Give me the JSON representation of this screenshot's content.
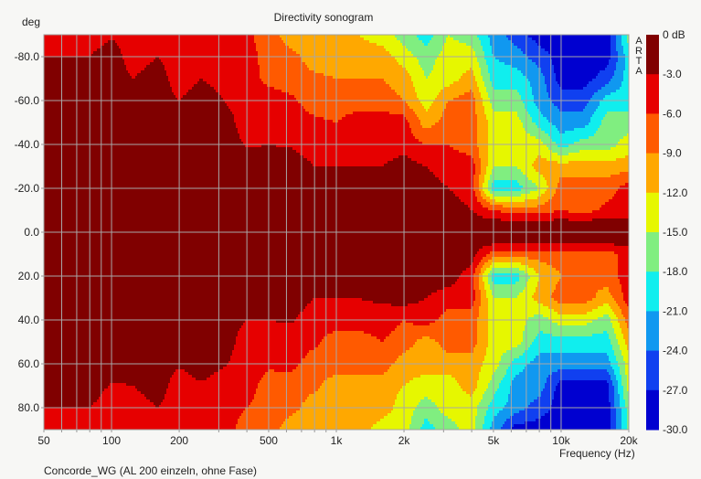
{
  "chart_data": {
    "type": "heatmap",
    "title": "Directivity sonogram",
    "xlabel": "Frequency (Hz)",
    "ylabel": "deg",
    "caption": "Concorde_WG (AL 200 einzeln, ohne Fase)",
    "watermark": "ARTA",
    "x_scale": "log",
    "xlim": [
      50,
      20000
    ],
    "ylim": [
      -90,
      90
    ],
    "grid": true,
    "x_tick_values": [
      50,
      100,
      200,
      500,
      1000,
      2000,
      5000,
      10000,
      20000
    ],
    "x_tick_labels": [
      "50",
      "100",
      "200",
      "500",
      "1k",
      "2k",
      "5k",
      "10k",
      "20k"
    ],
    "y_tick_values": [
      -80,
      -60,
      -40,
      -20,
      0,
      20,
      40,
      60,
      80
    ],
    "y_tick_labels": [
      "-80.0",
      "-60.0",
      "-40.0",
      "-20.0",
      "0.0",
      "20.0",
      "40.0",
      "60.0",
      "80.0"
    ],
    "colorbar": {
      "labels": [
        "0 dB",
        "-3.0",
        "-6.0",
        "-9.0",
        "-12.0",
        "-15.0",
        "-18.0",
        "-21.0",
        "-24.0",
        "-27.0",
        "-30.0"
      ],
      "levels_db": [
        0,
        -3,
        -6,
        -9,
        -12,
        -15,
        -18,
        -21,
        -24,
        -27,
        -30
      ],
      "colors": [
        "#800000",
        "#e60000",
        "#ff5a00",
        "#ffa800",
        "#e6f700",
        "#80ee80",
        "#10eeee",
        "#1098f0",
        "#1040f0",
        "#0000d0"
      ]
    },
    "frequencies_hz": [
      50,
      63,
      80,
      100,
      125,
      160,
      200,
      250,
      315,
      400,
      500,
      630,
      800,
      1000,
      1250,
      1600,
      2000,
      2500,
      3150,
      4000,
      5000,
      6300,
      8000,
      10000,
      12500,
      16000,
      20000
    ],
    "angles_deg": [
      -90,
      -80,
      -70,
      -60,
      -50,
      -40,
      -30,
      -20,
      -10,
      -5,
      0,
      5,
      10,
      20,
      30,
      40,
      50,
      60,
      70,
      80,
      90
    ],
    "level_db": [
      [
        -4.5,
        -4.5,
        -4.5,
        -3.3,
        -4.5,
        -4.5,
        -4.5,
        -4.5,
        -4.5,
        -5.4,
        -7.5,
        -10.5,
        -10.5,
        -10.5,
        -12,
        -13.5,
        -16.5,
        -19.5,
        -15,
        -16.5,
        -22.5,
        -25.5,
        -28.5,
        -28.5,
        -28.5,
        -28.5,
        -16.5
      ],
      [
        -3,
        -3,
        -3,
        -1.5,
        -4.5,
        -3,
        -4.5,
        -4.5,
        -4.5,
        -4.5,
        -7.5,
        -8.1,
        -10.5,
        -10.5,
        -10.5,
        -10.5,
        -13.5,
        -16.5,
        -13.5,
        -13.5,
        -21,
        -22.5,
        -25.5,
        -28.5,
        -28.5,
        -28.5,
        -19.5
      ],
      [
        -1.5,
        -1.5,
        -1.5,
        -1.5,
        -3,
        -1.5,
        -4.5,
        -3,
        -3.9,
        -4.5,
        -6.9,
        -7.5,
        -8.4,
        -9,
        -9,
        -9,
        -10.5,
        -15,
        -13.5,
        -10.5,
        -19.5,
        -19.5,
        -22.5,
        -28.5,
        -28.5,
        -25.5,
        -19.5
      ],
      [
        -1.5,
        -1.5,
        -1.5,
        -1.5,
        -1.5,
        -1.5,
        -3,
        -1.5,
        -3,
        -4.5,
        -4.5,
        -5.4,
        -7.5,
        -7.5,
        -7.5,
        -7.5,
        -9,
        -13.5,
        -9,
        -7.5,
        -16.5,
        -16.5,
        -22.5,
        -25.5,
        -25.5,
        -19.5,
        -19.5
      ],
      [
        -1.5,
        -1.5,
        -1.5,
        -1.5,
        -1.5,
        -1.5,
        -1.5,
        -1.5,
        -1.5,
        -4.5,
        -4.5,
        -4.5,
        -5.4,
        -6,
        -4.5,
        -4.5,
        -4.5,
        -10.5,
        -7.5,
        -7.5,
        -13.5,
        -13.5,
        -19.5,
        -22.5,
        -22.5,
        -16.5,
        -16.5
      ],
      [
        -1.5,
        -1.5,
        -1.5,
        -1.5,
        -1.5,
        -1.5,
        -1.5,
        -1.5,
        -1.5,
        -3.3,
        -3,
        -3.3,
        -4.5,
        -4.5,
        -4.5,
        -4.5,
        -4.5,
        -6,
        -6,
        -7.5,
        -13.5,
        -13.5,
        -13.5,
        -19.5,
        -16.5,
        -16.5,
        -13.5
      ],
      [
        -1.5,
        -1.5,
        -1.5,
        -1.5,
        -1.5,
        -1.5,
        -1.5,
        -1.5,
        -1.5,
        -1.5,
        -1.5,
        -1.5,
        -3,
        -3,
        -3,
        -3,
        -1.5,
        -3,
        -4.5,
        -4.5,
        -15,
        -15,
        -10.5,
        -10.5,
        -10.5,
        -10.5,
        -10.5
      ],
      [
        -1.5,
        -1.5,
        -1.5,
        -1.5,
        -1.5,
        -1.5,
        -1.5,
        -1.5,
        -1.5,
        -1.5,
        -1.5,
        -1.5,
        -1.5,
        -1.5,
        -1.5,
        -1.5,
        -1.5,
        -1.5,
        -3,
        -4.5,
        -19.5,
        -19.5,
        -15,
        -7.5,
        -7.5,
        -7.5,
        -4.5
      ],
      [
        -1.5,
        -1.5,
        -1.5,
        -1.5,
        -1.5,
        -1.5,
        -1.5,
        -1.5,
        -1.5,
        -1.5,
        -1.5,
        -1.5,
        -1.5,
        -1.5,
        -1.5,
        -1.5,
        -1.5,
        -1.5,
        -1.5,
        -3,
        -6,
        -7.5,
        -7.5,
        -6,
        -7.5,
        -5.1,
        -4.5
      ],
      [
        -1.5,
        -1.5,
        -1.5,
        -1.5,
        -1.5,
        -1.5,
        -1.5,
        -1.5,
        -1.5,
        -1.5,
        -1.5,
        -1.5,
        -1.5,
        -1.5,
        -1.5,
        -1.5,
        -1.5,
        -1.5,
        -1.5,
        -1.5,
        -2.5,
        -2.5,
        -2.5,
        -2.5,
        -2.5,
        -2.5,
        -2.5
      ],
      [
        -1.5,
        -1.5,
        -1.5,
        -1.5,
        -1.5,
        -1.5,
        -1.5,
        -1.5,
        -1.5,
        -1.5,
        -1.5,
        -1.5,
        -1.5,
        -1.5,
        -1.5,
        -1.5,
        -1.5,
        -1.5,
        -1.5,
        -1.5,
        -1.5,
        -1.5,
        -1.5,
        -1.5,
        -1.5,
        -1.5,
        -1.5
      ],
      [
        -1.5,
        -1.5,
        -1.5,
        -1.5,
        -1.5,
        -1.5,
        -1.5,
        -1.5,
        -1.5,
        -1.5,
        -1.5,
        -1.5,
        -1.5,
        -1.5,
        -1.5,
        -1.5,
        -1.5,
        -1.5,
        -1.5,
        -1.5,
        -2.5,
        -2.5,
        -2.5,
        -2.5,
        -2.5,
        -2.5,
        -2.5
      ],
      [
        -1.5,
        -1.5,
        -1.5,
        -1.5,
        -1.5,
        -1.5,
        -1.5,
        -1.5,
        -1.5,
        -1.5,
        -1.5,
        -1.5,
        -1.5,
        -1.5,
        -1.5,
        -1.5,
        -1.5,
        -1.5,
        -1.5,
        -1.5,
        -7.5,
        -7.5,
        -7.5,
        -7.5,
        -7.5,
        -7.5,
        -4.5
      ],
      [
        -1.5,
        -1.5,
        -1.5,
        -1.5,
        -1.5,
        -1.5,
        -1.5,
        -1.5,
        -1.5,
        -1.5,
        -1.5,
        -1.5,
        -1.5,
        -1.5,
        -1.5,
        -1.5,
        -1.5,
        -1.5,
        -1.5,
        -4.5,
        -19.5,
        -19.5,
        -12,
        -9,
        -9,
        -7.5,
        -4.5
      ],
      [
        -1.5,
        -1.5,
        -1.5,
        -1.5,
        -1.5,
        -1.5,
        -1.5,
        -1.5,
        -1.5,
        -1.5,
        -1.5,
        -1.5,
        -3,
        -3,
        -3,
        -2.4,
        -1.5,
        -3,
        -4.5,
        -4.5,
        -15,
        -15,
        -10.5,
        -7.5,
        -7.5,
        -10.5,
        -4.5
      ],
      [
        -1.5,
        -1.5,
        -1.5,
        -1.5,
        -1.5,
        -1.5,
        -1.5,
        -1.5,
        -1.5,
        -3,
        -3,
        -2.7,
        -4.5,
        -4.5,
        -4.5,
        -4.5,
        -6,
        -4.5,
        -7.5,
        -7.5,
        -13.5,
        -13.5,
        -16.5,
        -13.5,
        -13.5,
        -16.5,
        -7.5
      ],
      [
        -1.5,
        -1.5,
        -1.5,
        -1.5,
        -1.5,
        -1.5,
        -1.5,
        -1.5,
        -1.5,
        -4.5,
        -4.5,
        -4.5,
        -5.4,
        -7.5,
        -7.5,
        -6,
        -7.5,
        -10.5,
        -7.5,
        -7.5,
        -13.5,
        -13.5,
        -19.5,
        -19.5,
        -19.5,
        -19.5,
        -10.5
      ],
      [
        -1.5,
        -1.5,
        -1.5,
        -1.5,
        -1.5,
        -1.5,
        -2.7,
        -1.5,
        -2.7,
        -4.5,
        -5.4,
        -5.1,
        -7.5,
        -7.5,
        -7.5,
        -7.5,
        -10.5,
        -10.5,
        -10.5,
        -10.5,
        -13.5,
        -19.5,
        -22.5,
        -22.5,
        -22.5,
        -22.5,
        -13.5
      ],
      [
        -1.5,
        -1.5,
        -1.5,
        -3.3,
        -3,
        -1.5,
        -4.5,
        -3.3,
        -4.5,
        -4.5,
        -7.5,
        -7.5,
        -8.4,
        -10.5,
        -10.5,
        -10.5,
        -12,
        -13.5,
        -13.5,
        -10.5,
        -16.5,
        -22.5,
        -22.5,
        -28.5,
        -28.5,
        -28.5,
        -13.5
      ],
      [
        -3,
        -3,
        -3,
        -4.5,
        -4.5,
        -3,
        -4.5,
        -4.5,
        -4.5,
        -6,
        -7.5,
        -8.1,
        -10.5,
        -10.5,
        -10.5,
        -10.5,
        -13.5,
        -16.5,
        -13.5,
        -13.5,
        -19.5,
        -22.5,
        -25.5,
        -28.5,
        -28.5,
        -28.5,
        -16.5
      ],
      [
        -4.5,
        -4.5,
        -4.5,
        -4.5,
        -4.5,
        -4.5,
        -4.5,
        -4.5,
        -4.5,
        -7.5,
        -7.5,
        -10.5,
        -10.5,
        -10.5,
        -10.5,
        -13.5,
        -13.5,
        -19.5,
        -16.5,
        -13.5,
        -22.5,
        -28.5,
        -28.5,
        -28.5,
        -28.5,
        -28.5,
        -16.5
      ]
    ]
  }
}
